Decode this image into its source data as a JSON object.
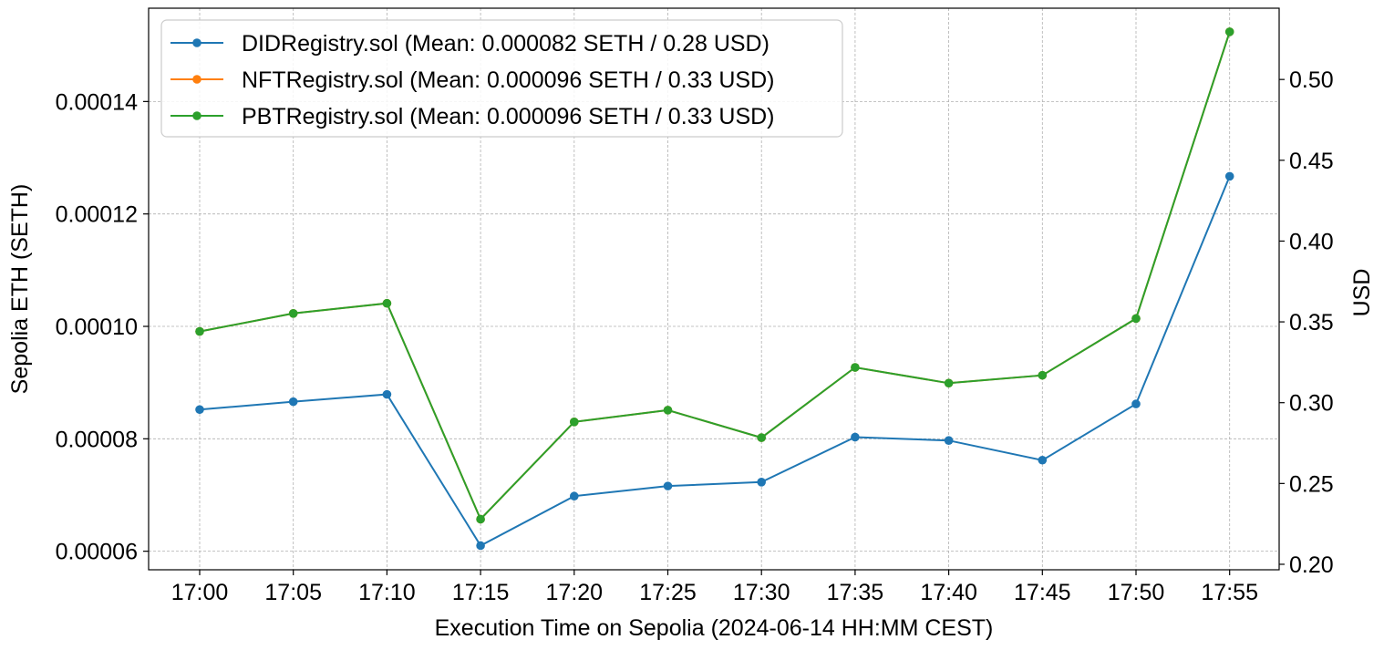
{
  "chart_data": {
    "type": "line",
    "xlabel": "Execution Time on Sepolia (2024-06-14 HH:MM CEST)",
    "ylabel": "Sepolia ETH (SETH)",
    "y2label": "USD",
    "categories": [
      "17:00",
      "17:05",
      "17:10",
      "17:15",
      "17:20",
      "17:25",
      "17:30",
      "17:35",
      "17:40",
      "17:45",
      "17:50",
      "17:55"
    ],
    "ylim": [
      5.67e-05,
      0.0001566
    ],
    "y2lim": [
      0.1966,
      0.5441
    ],
    "yticks": [
      {
        "value": 6e-05,
        "label": "0.00006"
      },
      {
        "value": 8e-05,
        "label": "0.00008"
      },
      {
        "value": 0.0001,
        "label": "0.00010"
      },
      {
        "value": 0.00012,
        "label": "0.00012"
      },
      {
        "value": 0.00014,
        "label": "0.00014"
      }
    ],
    "y2ticks": [
      {
        "value": 0.2,
        "label": "0.20"
      },
      {
        "value": 0.25,
        "label": "0.25"
      },
      {
        "value": 0.3,
        "label": "0.30"
      },
      {
        "value": 0.35,
        "label": "0.35"
      },
      {
        "value": 0.4,
        "label": "0.40"
      },
      {
        "value": 0.45,
        "label": "0.45"
      },
      {
        "value": 0.5,
        "label": "0.50"
      }
    ],
    "grid": true,
    "legend_position": "top-left",
    "series": [
      {
        "name": "DIDRegistry.sol (Mean: 0.000082 SETH / 0.28 USD)",
        "color": "#1f77b4",
        "values": [
          8.52e-05,
          8.66e-05,
          8.79e-05,
          6.1e-05,
          6.98e-05,
          7.16e-05,
          7.23e-05,
          8.03e-05,
          7.97e-05,
          7.62e-05,
          8.62e-05,
          0.0001267
        ]
      },
      {
        "name": "NFTRegistry.sol (Mean: 0.000096 SETH / 0.33 USD)",
        "color": "#ff7f0e",
        "values": [
          9.91e-05,
          0.0001023,
          0.0001041,
          6.57e-05,
          8.3e-05,
          8.51e-05,
          8.02e-05,
          9.27e-05,
          8.99e-05,
          9.13e-05,
          0.0001014,
          0.0001524
        ]
      },
      {
        "name": "PBTRegistry.sol (Mean: 0.000096 SETH / 0.33 USD)",
        "color": "#2ca02c",
        "values": [
          9.91e-05,
          0.0001023,
          0.0001041,
          6.57e-05,
          8.3e-05,
          8.51e-05,
          8.02e-05,
          9.27e-05,
          8.99e-05,
          9.13e-05,
          0.0001014,
          0.0001524
        ]
      }
    ]
  }
}
